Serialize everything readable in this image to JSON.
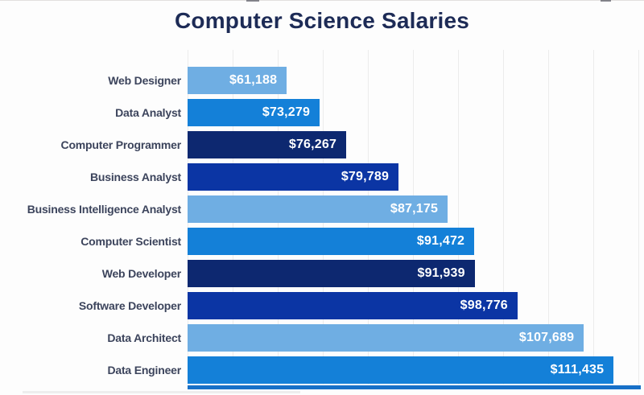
{
  "chart_data": {
    "type": "bar",
    "orientation": "horizontal",
    "title": "Computer Science Salaries",
    "categories": [
      "Web Designer",
      "Data Analyst",
      "Computer Programmer",
      "Business Analyst",
      "Business Intelligence Analyst",
      "Computer Scientist",
      "Web Developer",
      "Software Developer",
      "Data Architect",
      "Data Engineer"
    ],
    "values": [
      61188,
      73279,
      76267,
      79789,
      87175,
      91472,
      91939,
      98776,
      107689,
      111435
    ],
    "value_labels": [
      "$61,188",
      "$73,279",
      "$76,267",
      "$79,789",
      "$87,175",
      "$91,472",
      "$91,939",
      "$98,776",
      "$107,689",
      "$111,435"
    ],
    "xlabel": "",
    "ylabel": "",
    "legend": "none",
    "axis_tick_labels": "none visible",
    "sort_order": "ascending salary, top to bottom",
    "grid": {
      "vertical_lines": true,
      "color": "#ececec",
      "spacing_px": 56
    },
    "bar_color_cycle": [
      "#6FAEE3",
      "#1480D8",
      "#0D2870",
      "#0B35A4"
    ],
    "bar_colors": [
      "#6FAEE3",
      "#1480D8",
      "#0D2870",
      "#0B35A4",
      "#6FAEE3",
      "#1480D8",
      "#0D2870",
      "#0B35A4",
      "#6FAEE3",
      "#1480D8"
    ],
    "bar_end_fractions": [
      0.22,
      0.293,
      0.352,
      0.468,
      0.577,
      0.636,
      0.637,
      0.732,
      0.879,
      0.945
    ],
    "title_color": "#1d2b56",
    "label_color": "#3c445c",
    "value_text_color": "#ffffff",
    "background": "#fdfdfd",
    "bottom_strip_color": "#1770c8"
  }
}
